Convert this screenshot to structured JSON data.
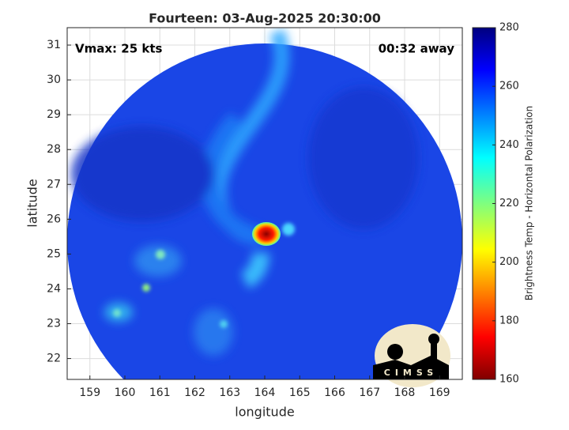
{
  "chart_data": {
    "type": "map",
    "title": "Fourteen: 03-Aug-2025 20:30:00",
    "annotations": [
      "Vmax: 25 kts",
      "00:32 away"
    ],
    "xlabel": "longitude",
    "ylabel": "latitude",
    "xlim": [
      158.35,
      169.65
    ],
    "xticks": [
      159,
      160,
      161,
      162,
      163,
      164,
      165,
      166,
      167,
      168,
      169
    ],
    "ylim": [
      21.4,
      31.5
    ],
    "yticks": [
      22,
      23,
      24,
      25,
      26,
      27,
      28,
      29,
      30,
      31
    ],
    "grid": true,
    "colorbar": {
      "label": "Brightness Temp - Horizontal Polarization",
      "lim": [
        160,
        280
      ],
      "ticks": [
        160,
        180,
        200,
        220,
        240,
        260,
        280
      ]
    },
    "logo": "CIMSS"
  }
}
